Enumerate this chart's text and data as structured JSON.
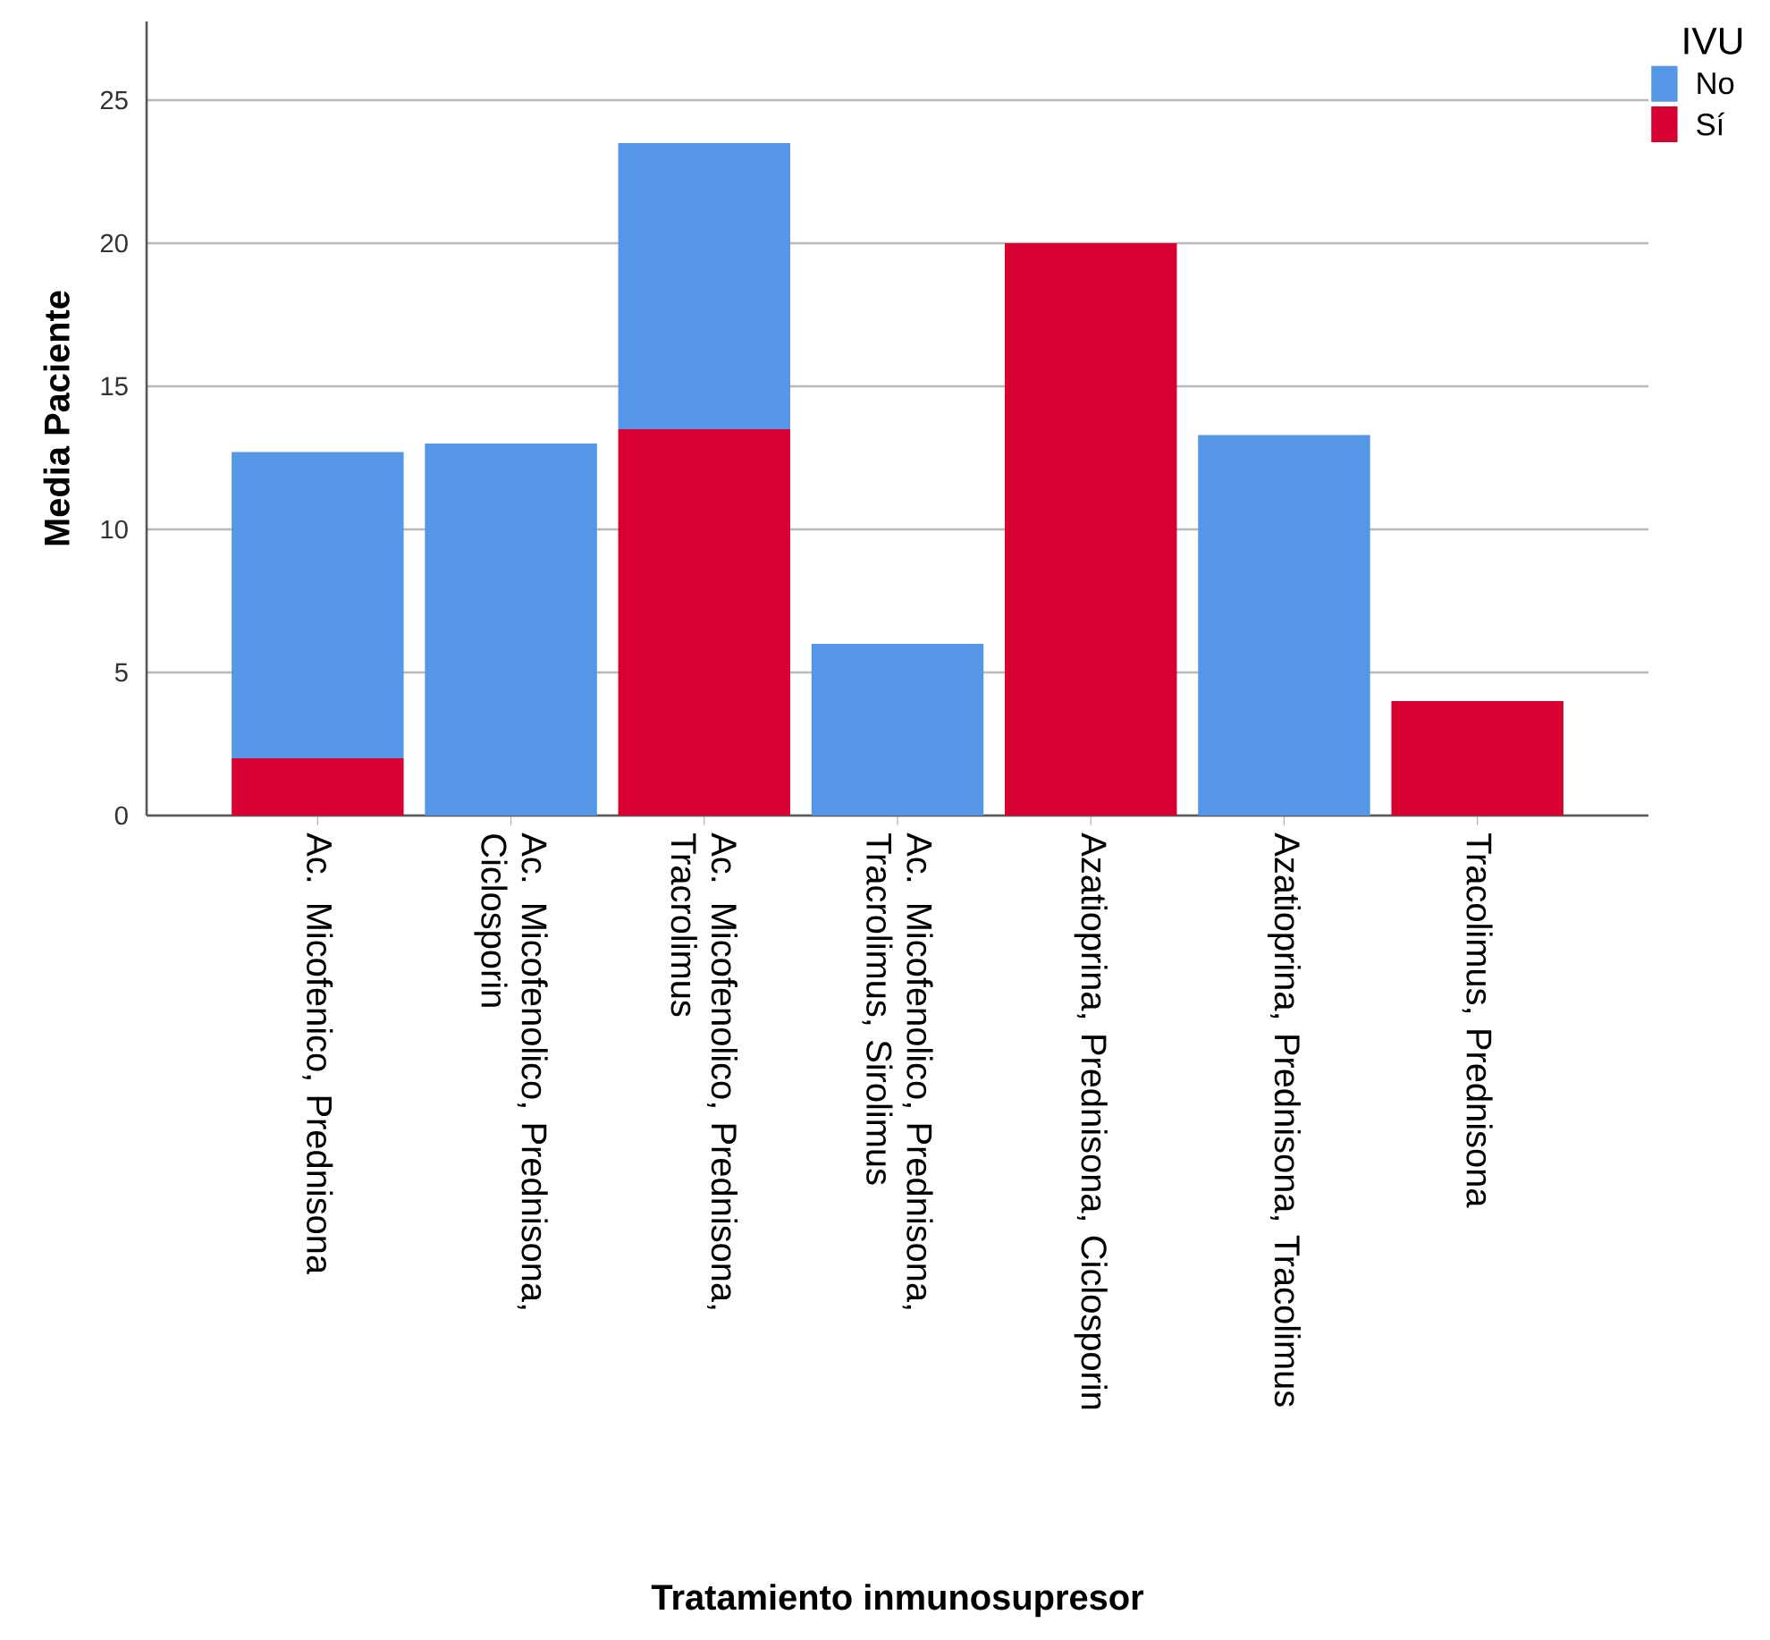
{
  "chart_data": {
    "type": "bar",
    "stacked": true,
    "xlabel": "Tratamiento inmunosupresor",
    "ylabel": "Media Paciente",
    "legend_title": "IVU",
    "legend": "top right",
    "grid": "y",
    "categories": [
      "Ac. Micofenico, Prednisona",
      "Ac. Micofenolico, Prednisona, Ciclosporin",
      "Ac. Micofenolico, Prednisona, Tracrolimus",
      "Ac. Micofenolico, Prednisona, Tracrolimus, Sirolimus",
      "Azatioprina, Prednisona, Ciclosporin",
      "Azatioprina, Prednisona, Tracolimus",
      "Tracolimus, Prednisona"
    ],
    "series": [
      {
        "name": "Sí",
        "color": "#d60032",
        "values": [
          2,
          null,
          13.5,
          null,
          20,
          null,
          4
        ]
      },
      {
        "name": "No",
        "color": "#5596e6",
        "values": [
          10.7,
          13,
          10,
          6,
          null,
          13.3,
          null
        ]
      }
    ],
    "ylim": [
      0,
      27.75
    ],
    "yticks": [
      0,
      5,
      10,
      15,
      20,
      25
    ]
  }
}
